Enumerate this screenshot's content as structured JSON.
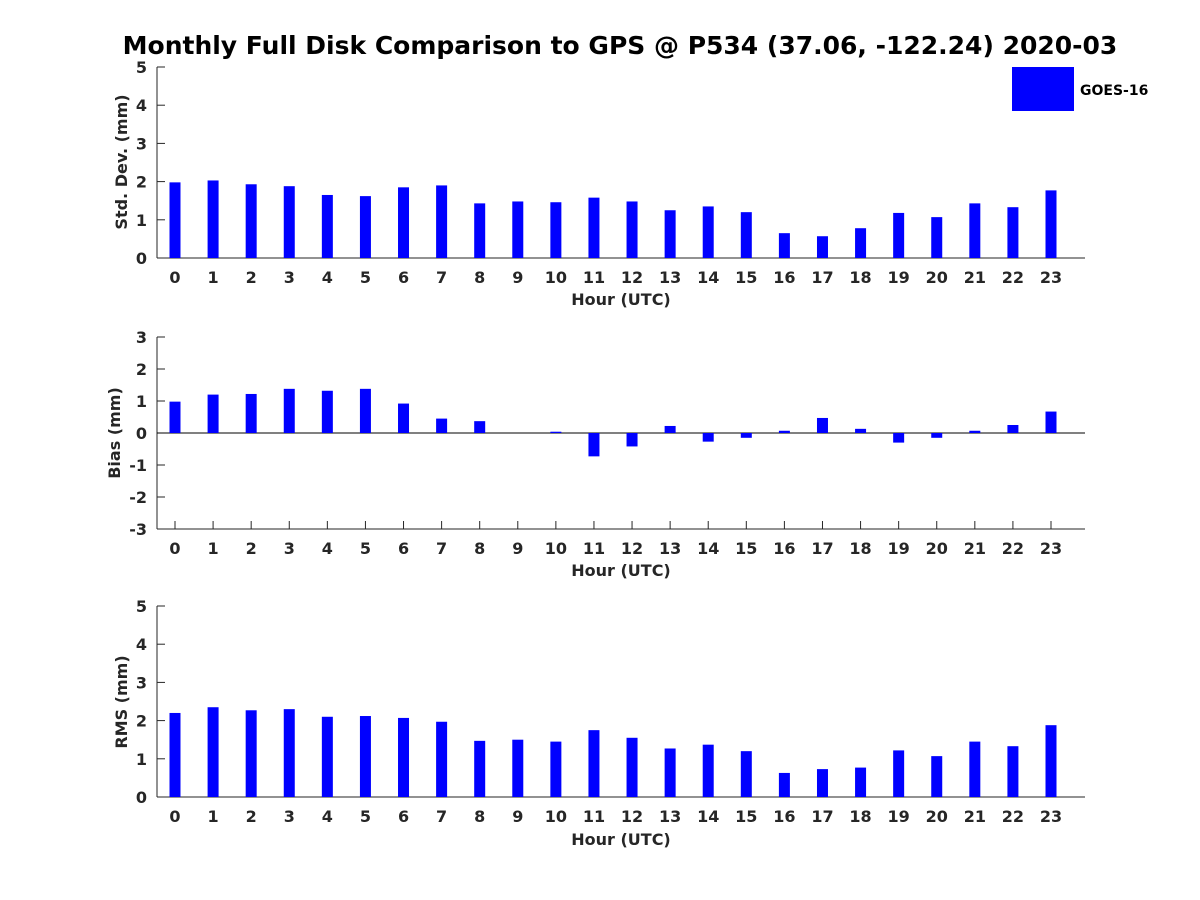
{
  "title": "Monthly Full Disk Comparison to GPS @ P534 (37.06, -122.24) 2020-03",
  "legend": {
    "label": "GOES-16",
    "color": "#0000ff"
  },
  "chart_data": [
    {
      "type": "bar",
      "xlabel": "Hour (UTC)",
      "ylabel": "Std. Dev. (mm)",
      "categories": [
        "0",
        "1",
        "2",
        "3",
        "4",
        "5",
        "6",
        "7",
        "8",
        "9",
        "10",
        "11",
        "12",
        "13",
        "14",
        "15",
        "16",
        "17",
        "18",
        "19",
        "20",
        "21",
        "22",
        "23"
      ],
      "series": [
        {
          "name": "GOES-16",
          "values": [
            1.98,
            2.03,
            1.93,
            1.88,
            1.65,
            1.62,
            1.85,
            1.9,
            1.43,
            1.48,
            1.46,
            1.58,
            1.48,
            1.25,
            1.35,
            1.2,
            0.65,
            0.57,
            0.78,
            1.18,
            1.07,
            1.43,
            1.33,
            1.77
          ]
        }
      ],
      "ylim": [
        0,
        5
      ],
      "yticks": [
        0,
        1,
        2,
        3,
        4,
        5
      ],
      "grid": false
    },
    {
      "type": "bar",
      "xlabel": "Hour (UTC)",
      "ylabel": "Bias (mm)",
      "categories": [
        "0",
        "1",
        "2",
        "3",
        "4",
        "5",
        "6",
        "7",
        "8",
        "9",
        "10",
        "11",
        "12",
        "13",
        "14",
        "15",
        "16",
        "17",
        "18",
        "19",
        "20",
        "21",
        "22",
        "23"
      ],
      "series": [
        {
          "name": "GOES-16",
          "values": [
            0.98,
            1.2,
            1.22,
            1.38,
            1.32,
            1.38,
            0.92,
            0.45,
            0.37,
            0.0,
            0.04,
            -0.73,
            -0.42,
            0.22,
            -0.27,
            -0.15,
            0.07,
            0.47,
            0.13,
            -0.3,
            -0.15,
            0.07,
            0.25,
            0.67
          ]
        }
      ],
      "ylim": [
        -3,
        3
      ],
      "yticks": [
        -3,
        -2,
        -1,
        0,
        1,
        2,
        3
      ],
      "grid": false
    },
    {
      "type": "bar",
      "xlabel": "Hour (UTC)",
      "ylabel": "RMS (mm)",
      "categories": [
        "0",
        "1",
        "2",
        "3",
        "4",
        "5",
        "6",
        "7",
        "8",
        "9",
        "10",
        "11",
        "12",
        "13",
        "14",
        "15",
        "16",
        "17",
        "18",
        "19",
        "20",
        "21",
        "22",
        "23"
      ],
      "series": [
        {
          "name": "GOES-16",
          "values": [
            2.2,
            2.35,
            2.27,
            2.3,
            2.1,
            2.12,
            2.07,
            1.97,
            1.47,
            1.5,
            1.45,
            1.75,
            1.55,
            1.27,
            1.37,
            1.2,
            0.63,
            0.73,
            0.77,
            1.22,
            1.07,
            1.45,
            1.33,
            1.88
          ]
        }
      ],
      "ylim": [
        0,
        5
      ],
      "yticks": [
        0,
        1,
        2,
        3,
        4,
        5
      ],
      "grid": false
    }
  ]
}
